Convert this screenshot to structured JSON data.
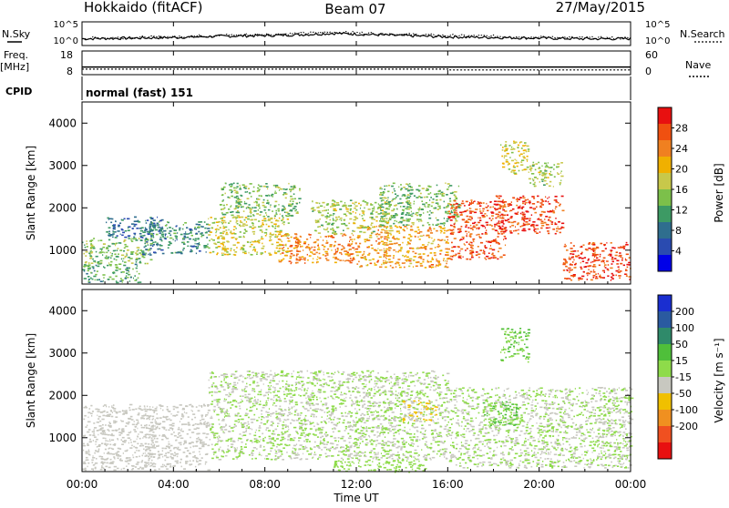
{
  "header": {
    "station": "Hokkaido (fitACF)",
    "beam": "Beam 07",
    "date": "27/May/2015"
  },
  "noise_panel": {
    "left_label": "N.Sky",
    "right_label": "N.Search",
    "left_ticks": [
      "10^5",
      "10^0"
    ],
    "right_ticks": [
      "10^5",
      "10^0"
    ]
  },
  "freq_panel": {
    "left_label_line1": "Freq.",
    "left_label_line2": "[MHz]",
    "left_ticks": [
      "18",
      "8"
    ],
    "right_label": "Nave",
    "right_ticks": [
      "60",
      "0"
    ],
    "freq_mhz": 11.2,
    "nave_before": 14,
    "nave_after": 12,
    "nave_change_hour": 16.1
  },
  "cpid_panel": {
    "label": "CPID",
    "mode": "normal (fast) 151"
  },
  "power_panel": {
    "ylabel": "Slant Range [km]",
    "yticks": [
      "4000",
      "3000",
      "2000",
      "1000"
    ],
    "ytick_values": [
      4000,
      3000,
      2000,
      1000
    ],
    "ylim": [
      200,
      4500
    ],
    "colorbar_label": "Power [dB]",
    "colorbar_ticks": [
      "28",
      "24",
      "20",
      "16",
      "12",
      "8",
      "4"
    ],
    "colorbar_values": [
      28,
      24,
      20,
      16,
      12,
      8,
      4
    ],
    "colorbar_range": [
      0,
      32
    ],
    "colorbar_colors": [
      "#0000e8",
      "#2a4bb0",
      "#2f6e8e",
      "#3d9a64",
      "#7cc04a",
      "#c8c84a",
      "#f0b000",
      "#f08020",
      "#f05010",
      "#e81010"
    ]
  },
  "velocity_panel": {
    "ylabel": "Slant Range [km]",
    "yticks": [
      "4000",
      "3000",
      "2000",
      "1000"
    ],
    "ytick_values": [
      4000,
      3000,
      2000,
      1000
    ],
    "ylim": [
      200,
      4500
    ],
    "colorbar_label": "Velocity [m s⁻¹]",
    "colorbar_ticks": [
      "200",
      "100",
      "50",
      "15",
      "-15",
      "-50",
      "-100",
      "-200"
    ],
    "colorbar_colors": [
      "#1a2ed0",
      "#2a5aa0",
      "#2f8a6a",
      "#4fbf3a",
      "#8edb4a",
      "#c8c8c0",
      "#f0c000",
      "#f09020",
      "#f05020",
      "#e81010"
    ]
  },
  "xaxis": {
    "label": "Time UT",
    "ticks": [
      "00:00",
      "04:00",
      "08:00",
      "12:00",
      "16:00",
      "20:00",
      "00:00"
    ],
    "tick_hours": [
      0,
      4,
      8,
      12,
      16,
      20,
      24
    ]
  },
  "chart_data": [
    {
      "type": "line",
      "title": "N.Sky / N.Search",
      "x": [
        0,
        2,
        4,
        6,
        8,
        10,
        11,
        12,
        14,
        16,
        18,
        20,
        22,
        24
      ],
      "series": [
        {
          "name": "N.Sky",
          "values": [
            0.35,
            0.4,
            0.45,
            0.55,
            0.6,
            0.7,
            0.78,
            0.72,
            0.6,
            0.5,
            0.45,
            0.4,
            0.35,
            0.35
          ]
        },
        {
          "name": "N.Search",
          "values": [
            0.4,
            0.45,
            0.5,
            0.62,
            0.68,
            0.8,
            0.88,
            0.82,
            0.7,
            0.6,
            0.55,
            0.48,
            0.42,
            0.4
          ]
        }
      ]
    },
    {
      "type": "line",
      "title": "Freq. [MHz] / Nave",
      "x": [
        0,
        16.1,
        24
      ],
      "series": [
        {
          "name": "Freq.",
          "values": [
            11.2,
            11.2,
            11.2
          ]
        },
        {
          "name": "Nave",
          "values": [
            14,
            14,
            12
          ]
        }
      ]
    },
    {
      "type": "heatmap",
      "title": "Power [dB]",
      "xlabel": "Time UT",
      "ylabel": "Slant Range [km]",
      "xlim": [
        0,
        24
      ],
      "ylim": [
        200,
        4500
      ],
      "value_range": [
        0,
        32
      ],
      "regions": [
        {
          "t0": 0.0,
          "t1": 2.5,
          "r0": 250,
          "r1": 700,
          "value": 12
        },
        {
          "t0": 0.0,
          "t1": 3.0,
          "r0": 700,
          "r1": 1300,
          "value": 14
        },
        {
          "t0": 1.0,
          "t1": 3.5,
          "r0": 1300,
          "r1": 1800,
          "value": 8
        },
        {
          "t0": 2.5,
          "t1": 5.5,
          "r0": 900,
          "r1": 1700,
          "value": 10
        },
        {
          "t0": 5.5,
          "t1": 9.0,
          "r0": 900,
          "r1": 1800,
          "value": 18
        },
        {
          "t0": 6.0,
          "t1": 9.5,
          "r0": 1800,
          "r1": 2600,
          "value": 14
        },
        {
          "t0": 8.5,
          "t1": 12.0,
          "r0": 700,
          "r1": 1400,
          "value": 24
        },
        {
          "t0": 10.0,
          "t1": 13.5,
          "r0": 1400,
          "r1": 2200,
          "value": 16
        },
        {
          "t0": 12.0,
          "t1": 16.0,
          "r0": 600,
          "r1": 1600,
          "value": 22
        },
        {
          "t0": 13.0,
          "t1": 16.5,
          "r0": 1600,
          "r1": 2600,
          "value": 14
        },
        {
          "t0": 16.0,
          "t1": 18.5,
          "r0": 800,
          "r1": 2200,
          "value": 27
        },
        {
          "t0": 18.0,
          "t1": 21.0,
          "r0": 1400,
          "r1": 2300,
          "value": 28
        },
        {
          "t0": 21.0,
          "t1": 24.0,
          "r0": 300,
          "r1": 1200,
          "value": 28
        },
        {
          "t0": 18.3,
          "t1": 19.5,
          "r0": 2800,
          "r1": 3600,
          "value": 18
        },
        {
          "t0": 19.5,
          "t1": 21.0,
          "r0": 2500,
          "r1": 3100,
          "value": 16
        }
      ]
    },
    {
      "type": "heatmap",
      "title": "Velocity",
      "xlabel": "Time UT",
      "ylabel": "Slant Range [km]",
      "xlim": [
        0,
        24
      ],
      "ylim": [
        200,
        4500
      ],
      "value_range": [
        -200,
        200
      ],
      "regions": [
        {
          "t0": 0.0,
          "t1": 5.5,
          "r0": 250,
          "r1": 1800,
          "value": -5
        },
        {
          "t0": 5.5,
          "t1": 16.0,
          "r0": 500,
          "r1": 2600,
          "value": 0
        },
        {
          "t0": 16.0,
          "t1": 24.0,
          "r0": 300,
          "r1": 2200,
          "value": 0
        },
        {
          "t0": 17.5,
          "t1": 19.0,
          "r0": 1300,
          "r1": 1900,
          "value": 40
        },
        {
          "t0": 18.3,
          "t1": 19.5,
          "r0": 2800,
          "r1": 3600,
          "value": 40
        },
        {
          "t0": 11.0,
          "t1": 15.0,
          "r0": 200,
          "r1": 500,
          "value": 35
        },
        {
          "t0": 14.0,
          "t1": 15.5,
          "r0": 1400,
          "r1": 1900,
          "value": -40
        }
      ]
    }
  ]
}
